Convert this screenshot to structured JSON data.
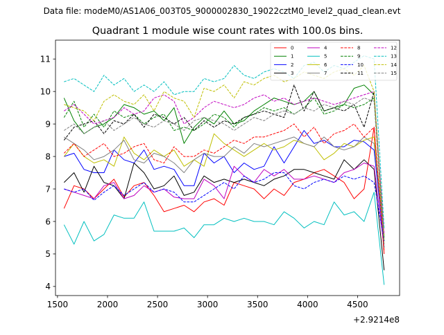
{
  "chart_data": {
    "type": "line",
    "suptitle": "Data file: modeM0/AS1A06_003T05_9000002830_19022cztM0_level2_quad_clean.evt",
    "title": "Quadrant 1 module wise count rates with 100.0s bins.",
    "xlabel": "",
    "ylabel": "",
    "x_offset_label": "+2.9214e8",
    "xlim": [
      1480,
      4920
    ],
    "ylim": [
      3.72,
      11.58
    ],
    "x_ticks": [
      1500,
      2000,
      2500,
      3000,
      3500,
      4000,
      4500
    ],
    "y_ticks": [
      4,
      5,
      6,
      7,
      8,
      9,
      10,
      11
    ],
    "grid": false,
    "legend_placement": "top-right",
    "x": [
      1565,
      1665,
      1765,
      1865,
      1965,
      2065,
      2165,
      2265,
      2365,
      2465,
      2565,
      2665,
      2765,
      2865,
      2965,
      3065,
      3165,
      3265,
      3365,
      3465,
      3565,
      3665,
      3765,
      3865,
      3965,
      4065,
      4165,
      4265,
      4365,
      4465,
      4565,
      4665,
      4765
    ],
    "series": [
      {
        "name": "0",
        "color": "#ff0000",
        "dash": false,
        "values": [
          6.4,
          7.1,
          7.0,
          6.7,
          7.0,
          7.3,
          6.75,
          7.1,
          7.2,
          6.8,
          6.3,
          6.4,
          6.5,
          6.3,
          6.6,
          6.7,
          6.5,
          7.2,
          7.1,
          7.0,
          6.7,
          7.0,
          6.8,
          7.2,
          7.3,
          7.5,
          7.6,
          7.4,
          7.2,
          6.7,
          7.0,
          8.9,
          5.0
        ]
      },
      {
        "name": "1",
        "color": "#008000",
        "dash": false,
        "values": [
          9.8,
          9.1,
          8.7,
          8.9,
          9.0,
          9.2,
          9.6,
          9.5,
          9.3,
          9.4,
          9.1,
          9.5,
          8.4,
          8.9,
          9.2,
          9.0,
          9.4,
          9.0,
          9.1,
          9.4,
          9.6,
          9.8,
          9.7,
          9.6,
          9.7,
          10.0,
          9.4,
          9.5,
          9.6,
          10.1,
          10.2,
          9.9,
          5.5
        ]
      },
      {
        "name": "2",
        "color": "#0000ff",
        "dash": false,
        "values": [
          8.0,
          8.1,
          7.6,
          7.5,
          7.5,
          8.2,
          7.9,
          7.8,
          8.2,
          7.6,
          7.7,
          7.6,
          7.1,
          7.1,
          8.1,
          7.8,
          8.0,
          7.5,
          7.8,
          7.6,
          7.7,
          8.3,
          7.8,
          8.3,
          8.8,
          8.4,
          8.5,
          8.3,
          8.3,
          8.5,
          8.45,
          8.2,
          5.3
        ]
      },
      {
        "name": "3",
        "color": "#000000",
        "dash": false,
        "values": [
          7.2,
          7.5,
          6.9,
          7.7,
          7.2,
          7.1,
          6.7,
          7.8,
          7.5,
          7.0,
          7.1,
          7.4,
          6.8,
          6.9,
          7.4,
          7.2,
          7.3,
          7.2,
          7.3,
          7.2,
          7.1,
          7.3,
          7.4,
          7.6,
          7.6,
          7.5,
          7.4,
          7.3,
          7.9,
          7.6,
          7.9,
          7.6,
          4.5
        ]
      },
      {
        "name": "4",
        "color": "#bf00bf",
        "dash": false,
        "values": [
          7.0,
          6.9,
          6.8,
          6.7,
          7.1,
          7.2,
          6.7,
          6.8,
          7.1,
          6.9,
          7.0,
          6.75,
          6.7,
          6.7,
          7.3,
          7.1,
          6.7,
          7.7,
          7.4,
          7.2,
          7.6,
          7.4,
          7.6,
          7.3,
          7.3,
          7.4,
          7.3,
          7.2,
          7.5,
          7.6,
          7.8,
          7.7,
          5.2
        ]
      },
      {
        "name": "5",
        "color": "#00bfbf",
        "dash": false,
        "values": [
          5.9,
          5.3,
          6.0,
          5.4,
          5.6,
          6.2,
          6.1,
          6.1,
          6.6,
          5.7,
          5.7,
          5.7,
          5.8,
          5.5,
          5.9,
          5.9,
          6.1,
          6.0,
          6.1,
          6.0,
          6.0,
          5.9,
          6.3,
          6.1,
          5.8,
          6.0,
          5.9,
          6.6,
          6.2,
          6.3,
          6.0,
          6.9,
          4.05
        ]
      },
      {
        "name": "6",
        "color": "#bfbf00",
        "dash": false,
        "values": [
          8.0,
          8.4,
          8.0,
          7.8,
          7.9,
          7.7,
          8.6,
          8.1,
          7.9,
          8.2,
          8.0,
          8.2,
          7.7,
          7.9,
          7.7,
          8.7,
          8.4,
          8.2,
          8.0,
          8.2,
          8.4,
          8.2,
          8.3,
          8.5,
          8.4,
          8.3,
          7.9,
          8.1,
          8.4,
          8.3,
          8.5,
          8.6,
          5.6
        ]
      },
      {
        "name": "7",
        "color": "#808080",
        "dash": false,
        "values": [
          8.6,
          8.4,
          8.2,
          7.9,
          8.0,
          8.2,
          8.5,
          7.9,
          7.8,
          8.1,
          8.0,
          7.8,
          7.5,
          7.9,
          8.1,
          8.0,
          8.0,
          8.3,
          8.1,
          8.4,
          8.3,
          8.4,
          8.5,
          8.6,
          8.4,
          8.3,
          8.6,
          8.3,
          8.2,
          8.3,
          8.6,
          8.4,
          5.4
        ]
      },
      {
        "name": "8",
        "color": "#ff0000",
        "dash": true,
        "values": [
          8.1,
          8.4,
          8.0,
          8.2,
          8.4,
          8.0,
          8.1,
          8.3,
          8.4,
          7.9,
          7.8,
          8.3,
          8.0,
          8.0,
          8.2,
          8.1,
          8.3,
          8.5,
          8.4,
          8.6,
          8.6,
          8.7,
          8.8,
          9.0,
          8.6,
          8.9,
          8.4,
          8.7,
          8.8,
          9.0,
          8.6,
          8.9,
          5.1
        ]
      },
      {
        "name": "9",
        "color": "#008000",
        "dash": true,
        "values": [
          9.2,
          9.7,
          8.9,
          9.3,
          8.9,
          9.4,
          9.2,
          9.3,
          9.0,
          9.2,
          9.3,
          8.8,
          8.9,
          8.8,
          9.0,
          9.3,
          9.2,
          8.9,
          9.2,
          9.3,
          9.5,
          9.4,
          9.5,
          9.3,
          9.5,
          9.8,
          9.3,
          9.4,
          9.6,
          9.5,
          9.6,
          9.8,
          5.4
        ]
      },
      {
        "name": "10",
        "color": "#0000ff",
        "dash": true,
        "values": [
          7.0,
          6.9,
          7.0,
          6.65,
          6.9,
          7.1,
          6.8,
          7.0,
          7.2,
          6.9,
          7.0,
          6.9,
          6.6,
          6.6,
          6.8,
          7.0,
          7.2,
          7.0,
          7.4,
          7.2,
          7.3,
          7.5,
          7.5,
          7.1,
          7.0,
          7.2,
          7.3,
          7.2,
          7.4,
          7.3,
          7.4,
          7.2,
          5.4
        ]
      },
      {
        "name": "11",
        "color": "#000000",
        "dash": true,
        "values": [
          8.5,
          8.9,
          9.0,
          9.1,
          8.7,
          9.1,
          9.0,
          9.3,
          8.9,
          9.3,
          9.2,
          9.0,
          9.2,
          8.8,
          9.1,
          8.9,
          9.1,
          9.0,
          9.2,
          9.3,
          9.4,
          9.3,
          9.2,
          10.2,
          9.4,
          10.0,
          9.4,
          9.5,
          9.4,
          9.6,
          8.9,
          10.0,
          5.2
        ]
      },
      {
        "name": "12",
        "color": "#bf00bf",
        "dash": true,
        "values": [
          9.4,
          9.6,
          9.3,
          9.0,
          9.1,
          9.2,
          9.5,
          9.3,
          9.4,
          9.8,
          9.9,
          9.7,
          9.0,
          9.2,
          9.5,
          9.7,
          9.6,
          9.5,
          9.6,
          9.8,
          9.9,
          9.7,
          9.8,
          9.6,
          9.7,
          9.8,
          9.7,
          9.6,
          9.7,
          9.8,
          9.9,
          10.0,
          5.6
        ]
      },
      {
        "name": "13",
        "color": "#00bfbf",
        "dash": true,
        "values": [
          10.3,
          10.4,
          10.2,
          10.0,
          10.5,
          10.2,
          10.4,
          10.0,
          10.2,
          10.0,
          10.3,
          9.9,
          10.0,
          10.0,
          10.4,
          10.3,
          10.4,
          10.8,
          10.5,
          10.4,
          10.6,
          10.7,
          10.6,
          10.4,
          10.8,
          10.9,
          10.6,
          10.8,
          10.7,
          10.9,
          11.1,
          11.0,
          5.8
        ]
      },
      {
        "name": "14",
        "color": "#bfbf00",
        "dash": true,
        "values": [
          9.6,
          9.5,
          9.4,
          9.1,
          9.7,
          9.9,
          9.7,
          9.6,
          9.9,
          9.4,
          10.0,
          9.8,
          9.7,
          9.2,
          10.1,
          10.0,
          10.2,
          9.8,
          10.3,
          10.2,
          10.4,
          10.5,
          10.3,
          10.4,
          10.6,
          10.5,
          10.4,
          10.6,
          10.7,
          10.5,
          10.8,
          10.0,
          5.3
        ]
      },
      {
        "name": "15",
        "color": "#808080",
        "dash": true,
        "values": [
          8.8,
          9.0,
          8.7,
          8.9,
          9.1,
          8.8,
          9.0,
          9.2,
          9.0,
          8.9,
          9.1,
          9.0,
          8.8,
          9.1,
          9.2,
          9.1,
          9.0,
          8.8,
          9.0,
          9.2,
          9.1,
          9.3,
          9.4,
          9.3,
          9.5,
          9.4,
          9.6,
          9.5,
          9.7,
          9.6,
          9.8,
          9.7,
          5.2
        ]
      }
    ]
  }
}
